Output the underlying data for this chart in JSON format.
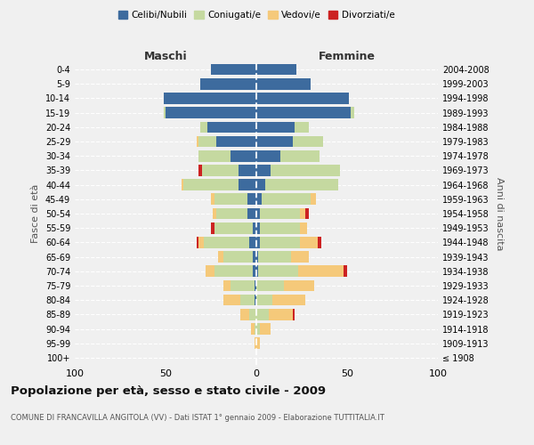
{
  "age_groups": [
    "100+",
    "95-99",
    "90-94",
    "85-89",
    "80-84",
    "75-79",
    "70-74",
    "65-69",
    "60-64",
    "55-59",
    "50-54",
    "45-49",
    "40-44",
    "35-39",
    "30-34",
    "25-29",
    "20-24",
    "15-19",
    "10-14",
    "5-9",
    "0-4"
  ],
  "birth_years": [
    "≤ 1908",
    "1909-1913",
    "1914-1918",
    "1919-1923",
    "1924-1928",
    "1929-1933",
    "1934-1938",
    "1939-1943",
    "1944-1948",
    "1949-1953",
    "1954-1958",
    "1959-1963",
    "1964-1968",
    "1969-1973",
    "1974-1978",
    "1979-1983",
    "1984-1988",
    "1989-1993",
    "1994-1998",
    "1999-2003",
    "2004-2008"
  ],
  "colors": {
    "celibi": "#3d6b9e",
    "coniugati": "#c5d9a0",
    "vedovi": "#f5c97a",
    "divorziati": "#cc2222"
  },
  "maschi": {
    "celibi": [
      0,
      0,
      0,
      0,
      1,
      1,
      2,
      2,
      4,
      2,
      5,
      5,
      10,
      10,
      14,
      22,
      27,
      50,
      51,
      31,
      25
    ],
    "coniugati": [
      0,
      0,
      1,
      4,
      8,
      13,
      21,
      16,
      25,
      21,
      17,
      18,
      30,
      20,
      18,
      10,
      4,
      1,
      0,
      0,
      0
    ],
    "vedovi": [
      0,
      1,
      2,
      5,
      9,
      4,
      5,
      3,
      3,
      0,
      2,
      2,
      1,
      0,
      0,
      1,
      0,
      0,
      0,
      0,
      0
    ],
    "divorziati": [
      0,
      0,
      0,
      0,
      0,
      0,
      0,
      0,
      1,
      2,
      0,
      0,
      0,
      2,
      0,
      0,
      0,
      0,
      0,
      0,
      0
    ]
  },
  "femmine": {
    "celibi": [
      0,
      0,
      0,
      0,
      0,
      0,
      1,
      1,
      2,
      2,
      2,
      3,
      5,
      8,
      13,
      20,
      21,
      52,
      51,
      30,
      22
    ],
    "coniugati": [
      0,
      0,
      2,
      7,
      9,
      15,
      22,
      18,
      22,
      22,
      22,
      27,
      40,
      38,
      22,
      17,
      8,
      2,
      0,
      0,
      0
    ],
    "vedovi": [
      0,
      2,
      6,
      13,
      18,
      17,
      25,
      10,
      10,
      4,
      3,
      3,
      0,
      0,
      0,
      0,
      0,
      0,
      0,
      0,
      0
    ],
    "divorziati": [
      0,
      0,
      0,
      1,
      0,
      0,
      2,
      0,
      2,
      0,
      2,
      0,
      0,
      0,
      0,
      0,
      0,
      0,
      0,
      0,
      0
    ]
  },
  "title": "Popolazione per età, sesso e stato civile - 2009",
  "subtitle": "COMUNE DI FRANCAVILLA ANGITOLA (VV) - Dati ISTAT 1° gennaio 2009 - Elaborazione TUTTITALIA.IT",
  "xlabel_left": "Maschi",
  "xlabel_right": "Femmine",
  "ylabel_left": "Fasce di età",
  "ylabel_right": "Anni di nascita",
  "xlim": 100,
  "legend_labels": [
    "Celibi/Nubili",
    "Coniugati/e",
    "Vedovi/e",
    "Divorziati/e"
  ],
  "background_color": "#f0f0f0"
}
